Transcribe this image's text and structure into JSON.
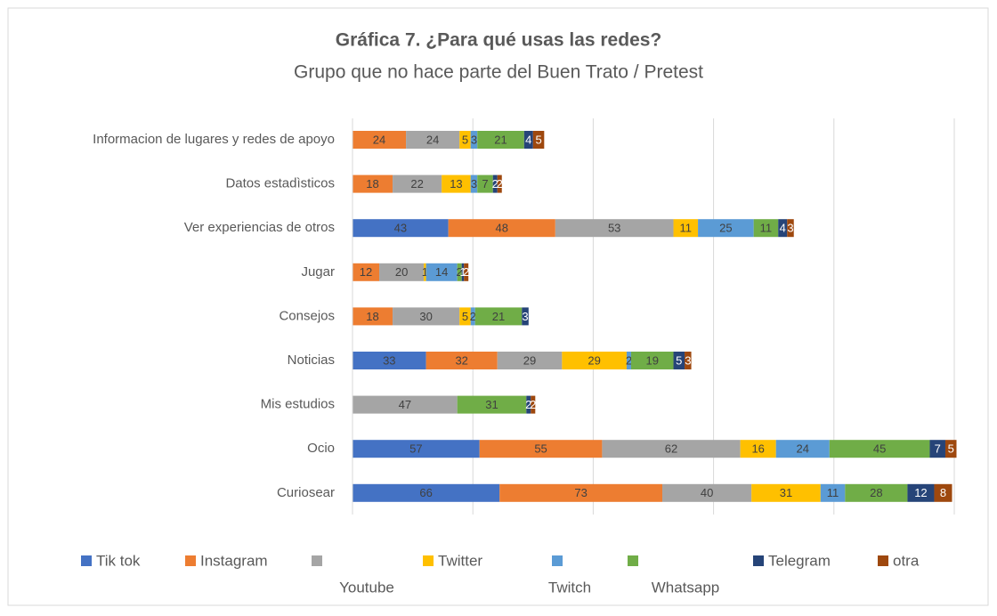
{
  "chart_data": {
    "type": "stacked_bar_horizontal",
    "title": "Gráfica 7. ¿Para qué usas las redes?",
    "subtitle": "Grupo que no hace parte del  Buen Trato / Pretest",
    "categories": [
      "Informacion de lugares y redes de apoyo",
      "Datos estadìsticos",
      "Ver experiencias de otros",
      "Jugar",
      "Consejos",
      "Noticias",
      "Mis estudios",
      "Ocio",
      "Curiosear"
    ],
    "series": [
      {
        "name": "Tik tok",
        "color": "#4472c4",
        "values": [
          null,
          null,
          43,
          null,
          null,
          33,
          null,
          57,
          66
        ]
      },
      {
        "name": "Instagram",
        "color": "#ed7d31",
        "values": [
          24,
          18,
          48,
          12,
          18,
          32,
          null,
          55,
          73
        ]
      },
      {
        "name": "Youtube",
        "color": "#a5a5a5",
        "values": [
          24,
          22,
          53,
          20,
          30,
          29,
          47,
          62,
          40
        ]
      },
      {
        "name": "Twitter",
        "color": "#ffc000",
        "values": [
          5,
          13,
          11,
          1,
          5,
          29,
          null,
          16,
          31
        ]
      },
      {
        "name": "Twitch",
        "color": "#5b9bd5",
        "values": [
          3,
          3,
          25,
          14,
          2,
          2,
          null,
          24,
          11
        ]
      },
      {
        "name": "Whatsapp",
        "color": "#70ad47",
        "values": [
          21,
          7,
          11,
          2,
          21,
          19,
          31,
          45,
          28
        ]
      },
      {
        "name": "Telegram",
        "color": "#264478",
        "values": [
          4,
          2,
          4,
          1,
          3,
          5,
          2,
          7,
          12
        ]
      },
      {
        "name": "otra",
        "color": "#9e480e",
        "values": [
          5,
          2,
          3,
          2,
          null,
          3,
          2,
          5,
          8
        ]
      }
    ],
    "xlim": [
      0,
      270
    ],
    "xticks": [
      0,
      54,
      108,
      162,
      216,
      270
    ],
    "grid": true
  }
}
